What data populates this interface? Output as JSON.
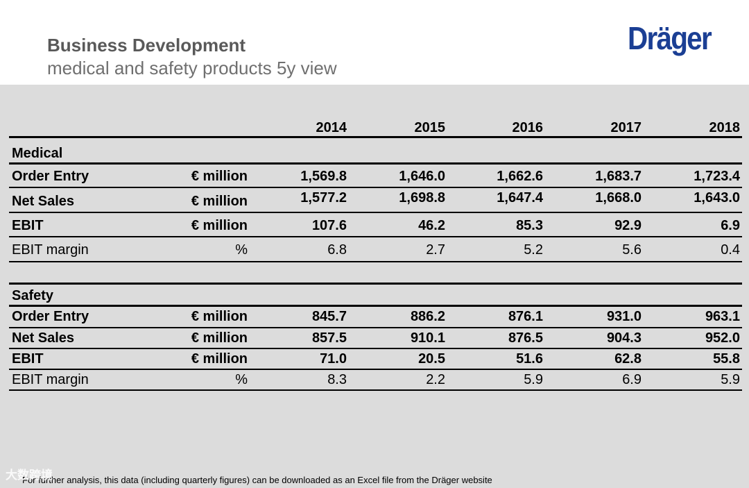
{
  "header": {
    "title": "Business Development",
    "subtitle": "medical and safety products 5y view",
    "logo": "Dräger"
  },
  "years": [
    "2014",
    "2015",
    "2016",
    "2017",
    "2018"
  ],
  "medical": {
    "section": "Medical",
    "rows": [
      {
        "label": "Order Entry",
        "unit": "€ million",
        "values": [
          "1,569.8",
          "1,646.0",
          "1,662.6",
          "1,683.7",
          "1,723.4"
        ]
      },
      {
        "label": "Net Sales",
        "unit": "€ million",
        "values": [
          "1,577.2",
          "1,698.8",
          "1,647.4",
          "1,668.0",
          "1,643.0"
        ]
      },
      {
        "label": "EBIT",
        "unit": "€ million",
        "values": [
          "107.6",
          "46.2",
          "85.3",
          "92.9",
          "6.9"
        ]
      },
      {
        "label": "EBIT margin",
        "unit": "%",
        "values": [
          "6.8",
          "2.7",
          "5.2",
          "5.6",
          "0.4"
        ]
      }
    ]
  },
  "safety": {
    "section": "Safety",
    "rows": [
      {
        "label": "Order Entry",
        "unit": "€ million",
        "values": [
          "845.7",
          "886.2",
          "876.1",
          "931.0",
          "963.1"
        ]
      },
      {
        "label": "Net Sales",
        "unit": "€ million",
        "values": [
          "857.5",
          "910.1",
          "876.5",
          "904.3",
          "952.0"
        ]
      },
      {
        "label": "EBIT",
        "unit": "€ million",
        "values": [
          "71.0",
          "20.5",
          "51.6",
          "62.8",
          "55.8"
        ]
      },
      {
        "label": "EBIT margin",
        "unit": "%",
        "values": [
          "8.3",
          "2.2",
          "5.9",
          "6.9",
          "5.9"
        ]
      }
    ]
  },
  "footer": {
    "note": "For further analysis, this data (including quarterly figures) can be downloaded as an Excel file from the Dräger website",
    "watermark": "大数跨境"
  }
}
